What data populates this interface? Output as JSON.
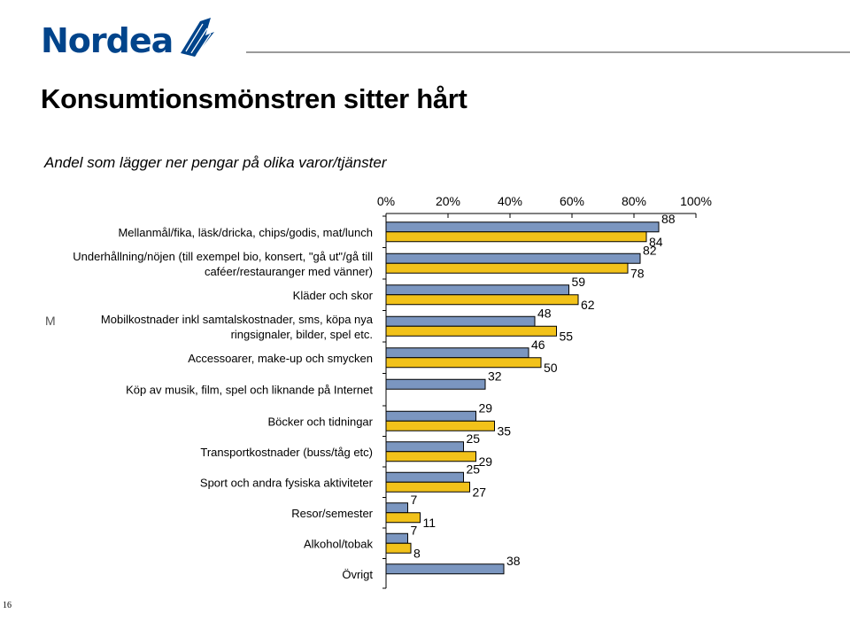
{
  "header": {
    "logo_text": "Nordea",
    "title": "Konsumtionsmönstren sitter hårt",
    "subtitle": "Andel som lägger ner pengar på olika varor/tjänster"
  },
  "page_number": "16",
  "stray_mark": "M",
  "colors": {
    "series_blue": "#7b96c0",
    "series_yellow": "#f2c21a",
    "bar_stroke": "#000000",
    "logo_blue": "#00448b"
  },
  "chart_data": {
    "type": "bar",
    "orientation": "horizontal",
    "categories": [
      "Mellanmål/fika, läsk/dricka, chips/godis, mat/lunch",
      "Underhållning/nöjen (till exempel bio, konsert, \"gå ut\"/gå till caféer/restauranger med vänner)",
      "Kläder och skor",
      "Mobilkostnader inkl samtalskostnader, sms, köpa nya ringsignaler, bilder, spel etc.",
      "Accessoarer, make-up och smycken",
      "Köp av musik, film, spel och liknande på Internet",
      "Böcker och tidningar",
      "Transportkostnader (buss/tåg etc)",
      "Sport och andra fysiska aktiviteter",
      "Resor/semester",
      "Alkohol/tobak",
      "Övrigt"
    ],
    "category_lines": [
      [
        "Mellanmål/fika, läsk/dricka, chips/godis, mat/lunch"
      ],
      [
        "Underhållning/nöjen (till exempel bio, konsert, \"gå ut\"/gå till",
        "caféer/restauranger med vänner)"
      ],
      [
        "Kläder och skor"
      ],
      [
        "Mobilkostnader inkl samtalskostnader, sms, köpa nya",
        "ringsignaler, bilder, spel etc."
      ],
      [
        "Accessoarer, make-up och smycken"
      ],
      [
        "Köp av musik, film, spel och liknande på Internet"
      ],
      [
        "Böcker och tidningar"
      ],
      [
        "Transportkostnader (buss/tåg etc)"
      ],
      [
        "Sport och andra fysiska aktiviteter"
      ],
      [
        "Resor/semester"
      ],
      [
        "Alkohol/tobak"
      ],
      [
        "Övrigt"
      ]
    ],
    "series": [
      {
        "values": [
          88,
          82,
          59,
          48,
          46,
          32,
          29,
          25,
          25,
          7,
          7,
          38
        ]
      },
      {
        "values": [
          84,
          78,
          62,
          55,
          50,
          null,
          35,
          29,
          27,
          11,
          8,
          null
        ]
      }
    ],
    "xlim": [
      0,
      100
    ],
    "x_ticks": [
      "0%",
      "20%",
      "40%",
      "60%",
      "80%",
      "100%"
    ],
    "x_axis_position": "top",
    "grid": false,
    "legend": "none"
  }
}
